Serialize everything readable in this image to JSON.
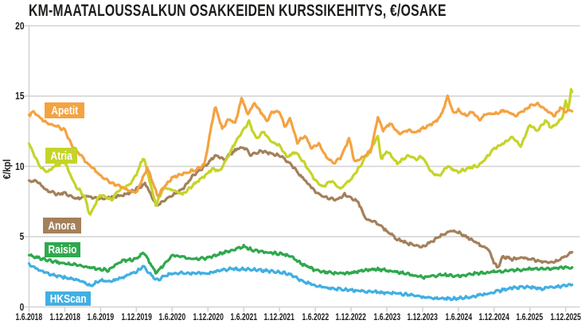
{
  "chart_data": {
    "type": "line",
    "title": "KM-MAATALOUSSALKUN OSAKKEIDEN KURSSIKEHITYS, €/OSAKE",
    "ylabel": "€/kpl",
    "ylim": [
      0,
      20
    ],
    "yticks": [
      0,
      5,
      10,
      15,
      20
    ],
    "x_tick_labels": [
      "1.6.2018",
      "1.12.2018",
      "1.6.2019",
      "1.12.2019",
      "1.6.2020",
      "1.12.2020",
      "1.6.2021",
      "1.12.2021",
      "1.6.2022",
      "1.12.2022",
      "1.6.2023",
      "1.12.2023",
      "1.6.2024",
      "1.12.2024",
      "1.6.2025",
      "1.12.2025"
    ],
    "x_unit": "t = half-years since 1.6.2018; one tick = 0.5 year",
    "grid": "horizontal gridlines at yticks",
    "legend_position": "inline colored labels at left inside plot",
    "background": "#ffffff",
    "axis_color": "#d2d2d2",
    "text_color": "#1d1d1b",
    "series": [
      {
        "name": "Apetit",
        "color": "#F5A23F",
        "points": [
          [
            0,
            13.6
          ],
          [
            0.1,
            13.9
          ],
          [
            0.5,
            13.1
          ],
          [
            0.8,
            12.8
          ],
          [
            1,
            12.6
          ],
          [
            1.2,
            11.5
          ],
          [
            1.6,
            10.3
          ],
          [
            2,
            9.3
          ],
          [
            2.3,
            8.8
          ],
          [
            2.6,
            8.5
          ],
          [
            3,
            8.1
          ],
          [
            3.3,
            9.9
          ],
          [
            3.6,
            7.9
          ],
          [
            3.8,
            8.6
          ],
          [
            4,
            9.2
          ],
          [
            4.3,
            9.5
          ],
          [
            4.6,
            9.7
          ],
          [
            4.9,
            10.1
          ],
          [
            5.2,
            14.3
          ],
          [
            5.4,
            12.7
          ],
          [
            5.6,
            13.4
          ],
          [
            5.75,
            13.0
          ],
          [
            5.95,
            14.9
          ],
          [
            6.1,
            13.7
          ],
          [
            6.3,
            14.5
          ],
          [
            6.5,
            13.8
          ],
          [
            6.65,
            13.2
          ],
          [
            6.8,
            13.9
          ],
          [
            7,
            13.9
          ],
          [
            7.15,
            12.8
          ],
          [
            7.3,
            13.4
          ],
          [
            7.5,
            11.7
          ],
          [
            7.7,
            12.2
          ],
          [
            7.9,
            11.3
          ],
          [
            8.1,
            11.6
          ],
          [
            8.3,
            10.7
          ],
          [
            8.5,
            10.2
          ],
          [
            8.7,
            10.6
          ],
          [
            8.95,
            12.0
          ],
          [
            9.1,
            10.3
          ],
          [
            9.35,
            10.7
          ],
          [
            9.55,
            11.1
          ],
          [
            9.75,
            13.5
          ],
          [
            9.9,
            12.6
          ],
          [
            10.1,
            13.1
          ],
          [
            10.35,
            12.3
          ],
          [
            10.6,
            12.6
          ],
          [
            10.8,
            12.4
          ],
          [
            11,
            12.7
          ],
          [
            11.3,
            13.1
          ],
          [
            11.5,
            13.5
          ],
          [
            11.7,
            15.0
          ],
          [
            11.85,
            13.8
          ],
          [
            12,
            14.0
          ],
          [
            12.2,
            13.6
          ],
          [
            12.4,
            13.9
          ],
          [
            12.6,
            13.3
          ],
          [
            12.8,
            13.8
          ],
          [
            13,
            13.7
          ],
          [
            13.3,
            14.0
          ],
          [
            13.6,
            13.6
          ],
          [
            13.9,
            14.1
          ],
          [
            14,
            14.3
          ],
          [
            14.2,
            14.5
          ],
          [
            14.4,
            14.1
          ],
          [
            14.7,
            13.6
          ],
          [
            14.85,
            14.2
          ],
          [
            15,
            13.9
          ],
          [
            15.2,
            14.0
          ]
        ]
      },
      {
        "name": "Atria",
        "color": "#C5D428",
        "points": [
          [
            0,
            11.6
          ],
          [
            0.3,
            10.0
          ],
          [
            0.5,
            9.6
          ],
          [
            0.7,
            10.0
          ],
          [
            1,
            10.3
          ],
          [
            1.3,
            8.6
          ],
          [
            1.55,
            7.9
          ],
          [
            1.7,
            6.5
          ],
          [
            1.9,
            7.6
          ],
          [
            2,
            8.0
          ],
          [
            2.3,
            7.6
          ],
          [
            2.5,
            8.3
          ],
          [
            2.8,
            8.7
          ],
          [
            3,
            9.4
          ],
          [
            3.2,
            10.7
          ],
          [
            3.55,
            7.2
          ],
          [
            3.75,
            8.5
          ],
          [
            4,
            8.3
          ],
          [
            4.3,
            8.0
          ],
          [
            4.6,
            8.7
          ],
          [
            4.9,
            9.3
          ],
          [
            5.1,
            9.8
          ],
          [
            5.35,
            9.7
          ],
          [
            5.6,
            10.9
          ],
          [
            5.8,
            11.9
          ],
          [
            6.15,
            13.2
          ],
          [
            6.35,
            11.9
          ],
          [
            6.55,
            12.5
          ],
          [
            6.8,
            11.7
          ],
          [
            7,
            11.5
          ],
          [
            7.2,
            10.7
          ],
          [
            7.45,
            11.0
          ],
          [
            7.7,
            10.2
          ],
          [
            8,
            9.0
          ],
          [
            8.2,
            8.5
          ],
          [
            8.45,
            9.0
          ],
          [
            8.7,
            8.4
          ],
          [
            9,
            9.1
          ],
          [
            9.3,
            10.2
          ],
          [
            9.75,
            12.1
          ],
          [
            9.85,
            10.5
          ],
          [
            10,
            11.1
          ],
          [
            10.3,
            10.2
          ],
          [
            10.6,
            10.8
          ],
          [
            10.8,
            10.5
          ],
          [
            11,
            10.7
          ],
          [
            11.25,
            9.6
          ],
          [
            11.45,
            9.3
          ],
          [
            11.7,
            10.0
          ],
          [
            12,
            9.6
          ],
          [
            12.3,
            9.9
          ],
          [
            12.6,
            10.1
          ],
          [
            12.8,
            10.7
          ],
          [
            13,
            11.3
          ],
          [
            13.3,
            11.7
          ],
          [
            13.5,
            12.1
          ],
          [
            13.75,
            11.4
          ],
          [
            14,
            13.0
          ],
          [
            14.2,
            12.5
          ],
          [
            14.45,
            13.3
          ],
          [
            14.6,
            12.7
          ],
          [
            14.9,
            13.4
          ],
          [
            15,
            14.6
          ],
          [
            15.07,
            14.0
          ],
          [
            15.15,
            15.4
          ],
          [
            15.2,
            15.2
          ]
        ]
      },
      {
        "name": "Anora",
        "color": "#A3805A",
        "points": [
          [
            0,
            8.9
          ],
          [
            0.2,
            9.0
          ],
          [
            0.5,
            8.3
          ],
          [
            0.8,
            8.0
          ],
          [
            1,
            8.1
          ],
          [
            1.3,
            7.7
          ],
          [
            1.6,
            7.9
          ],
          [
            2,
            7.7
          ],
          [
            2.5,
            7.9
          ],
          [
            2.8,
            8.1
          ],
          [
            3,
            8.4
          ],
          [
            3.25,
            8.8
          ],
          [
            3.55,
            7.2
          ],
          [
            3.8,
            7.6
          ],
          [
            4,
            7.9
          ],
          [
            4.3,
            8.4
          ],
          [
            4.6,
            9.4
          ],
          [
            5,
            10.2
          ],
          [
            5.2,
            10.8
          ],
          [
            5.45,
            10.5
          ],
          [
            5.8,
            11.2
          ],
          [
            6,
            11.4
          ],
          [
            6.2,
            10.8
          ],
          [
            6.5,
            11.1
          ],
          [
            6.8,
            10.9
          ],
          [
            7,
            10.8
          ],
          [
            7.3,
            10.2
          ],
          [
            7.6,
            9.3
          ],
          [
            8,
            8.2
          ],
          [
            8.3,
            7.8
          ],
          [
            8.6,
            7.6
          ],
          [
            8.8,
            8.0
          ],
          [
            9,
            7.8
          ],
          [
            9.2,
            7.5
          ],
          [
            9.4,
            6.3
          ],
          [
            9.7,
            6.0
          ],
          [
            10,
            5.4
          ],
          [
            10.3,
            4.8
          ],
          [
            10.6,
            4.5
          ],
          [
            11,
            4.3
          ],
          [
            11.3,
            4.7
          ],
          [
            11.6,
            5.2
          ],
          [
            11.8,
            5.4
          ],
          [
            12,
            5.3
          ],
          [
            12.3,
            4.9
          ],
          [
            12.6,
            4.4
          ],
          [
            12.85,
            4.1
          ],
          [
            13,
            3.1
          ],
          [
            13.1,
            2.8
          ],
          [
            13.25,
            3.6
          ],
          [
            13.5,
            3.4
          ],
          [
            13.8,
            3.5
          ],
          [
            14,
            3.4
          ],
          [
            14.4,
            3.2
          ],
          [
            14.7,
            3.2
          ],
          [
            15,
            3.6
          ],
          [
            15.2,
            4.0
          ]
        ]
      },
      {
        "name": "Raisio",
        "color": "#2FA84D",
        "points": [
          [
            0,
            3.7
          ],
          [
            0.5,
            3.3
          ],
          [
            1,
            3.1
          ],
          [
            1.5,
            2.9
          ],
          [
            2,
            2.7
          ],
          [
            2.2,
            2.6
          ],
          [
            2.6,
            3.3
          ],
          [
            3,
            3.4
          ],
          [
            3.2,
            3.9
          ],
          [
            3.55,
            2.4
          ],
          [
            4,
            3.7
          ],
          [
            4.3,
            3.6
          ],
          [
            4.6,
            3.4
          ],
          [
            5,
            3.5
          ],
          [
            5.5,
            3.9
          ],
          [
            6,
            4.3
          ],
          [
            6.3,
            4.0
          ],
          [
            6.6,
            3.9
          ],
          [
            7,
            3.8
          ],
          [
            7.3,
            3.6
          ],
          [
            7.6,
            3.1
          ],
          [
            8,
            2.6
          ],
          [
            8.5,
            2.4
          ],
          [
            9,
            2.4
          ],
          [
            9.3,
            2.6
          ],
          [
            9.6,
            2.7
          ],
          [
            10,
            2.6
          ],
          [
            10.5,
            2.4
          ],
          [
            11,
            2.1
          ],
          [
            11.5,
            2.3
          ],
          [
            12,
            2.2
          ],
          [
            12.5,
            2.4
          ],
          [
            13,
            2.5
          ],
          [
            13.5,
            2.6
          ],
          [
            14,
            2.7
          ],
          [
            14.5,
            2.7
          ],
          [
            15,
            2.8
          ],
          [
            15.2,
            2.8
          ]
        ]
      },
      {
        "name": "HKScan",
        "color": "#41AFE3",
        "points": [
          [
            0,
            3.0
          ],
          [
            0.3,
            2.6
          ],
          [
            0.5,
            2.4
          ],
          [
            1,
            2.1
          ],
          [
            1.4,
            1.9
          ],
          [
            1.7,
            1.5
          ],
          [
            2,
            1.9
          ],
          [
            2.3,
            1.8
          ],
          [
            2.6,
            2.1
          ],
          [
            3,
            2.5
          ],
          [
            3.2,
            2.9
          ],
          [
            3.55,
            1.9
          ],
          [
            4,
            2.4
          ],
          [
            4.5,
            2.4
          ],
          [
            5,
            2.4
          ],
          [
            5.3,
            2.6
          ],
          [
            5.6,
            2.7
          ],
          [
            6,
            2.7
          ],
          [
            6.5,
            2.6
          ],
          [
            7,
            2.5
          ],
          [
            7.3,
            2.3
          ],
          [
            7.6,
            1.9
          ],
          [
            8,
            1.5
          ],
          [
            8.5,
            1.3
          ],
          [
            9,
            1.2
          ],
          [
            9.5,
            1.1
          ],
          [
            10,
            1.0
          ],
          [
            10.5,
            0.9
          ],
          [
            11,
            0.7
          ],
          [
            11.5,
            0.6
          ],
          [
            12,
            0.6
          ],
          [
            12.5,
            0.8
          ],
          [
            13,
            1.05
          ],
          [
            13.3,
            1.25
          ],
          [
            13.6,
            1.4
          ],
          [
            14,
            1.4
          ],
          [
            14.3,
            1.3
          ],
          [
            14.6,
            1.4
          ],
          [
            15,
            1.5
          ],
          [
            15.2,
            1.6
          ]
        ]
      }
    ]
  }
}
